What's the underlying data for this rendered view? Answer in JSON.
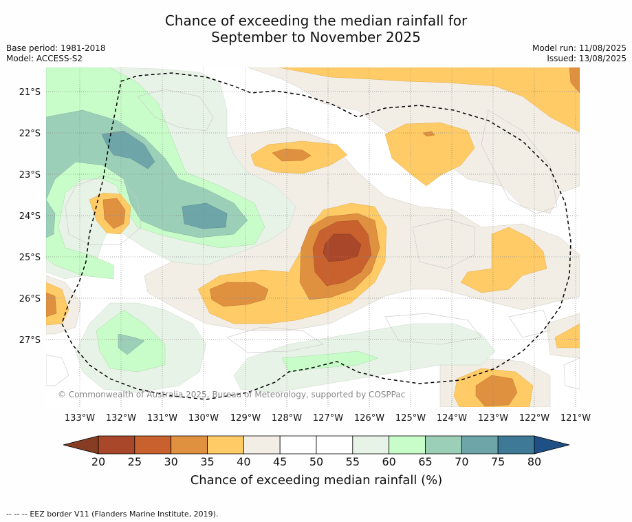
{
  "title": {
    "line1": "Chance of exceeding the median rainfall for",
    "line2": "September to November 2025"
  },
  "meta": {
    "base_period": "Base period: 1981-2018",
    "model": "Model: ACCESS-S2",
    "model_run": "Model run: 11/08/2025",
    "issued": "Issued: 13/08/2025"
  },
  "map": {
    "copyright": "© Commonwealth of Australia 2025, Bureau of Meteorology, supported by COSPPac",
    "lat_labels": [
      "21°S",
      "22°S",
      "23°S",
      "24°S",
      "25°S",
      "26°S",
      "27°S"
    ],
    "lon_labels": [
      "133°W",
      "132°W",
      "131°W",
      "130°W",
      "129°W",
      "128°W",
      "127°W",
      "126°W",
      "125°W",
      "124°W",
      "123°W",
      "122°W",
      "121°W"
    ]
  },
  "legend": {
    "ticks": [
      "20",
      "25",
      "30",
      "35",
      "40",
      "45",
      "50",
      "55",
      "60",
      "65",
      "70",
      "75",
      "80"
    ],
    "colors": [
      "#a9472a",
      "#c9612f",
      "#df9140",
      "#ffcb66",
      "#f2eee6",
      "#ffffff",
      "#ffffff",
      "#e8f3e8",
      "#c8fcc8",
      "#9ccfb8",
      "#6ea5a8",
      "#3e7a96"
    ],
    "low_color": "#873c24",
    "high_color": "#1e4f85",
    "label": "Chance of exceeding median rainfall (%)"
  },
  "footer": {
    "symbol": "--  --  --",
    "text": "EEZ border V11 (Flanders Marine Institute, 2019)."
  }
}
